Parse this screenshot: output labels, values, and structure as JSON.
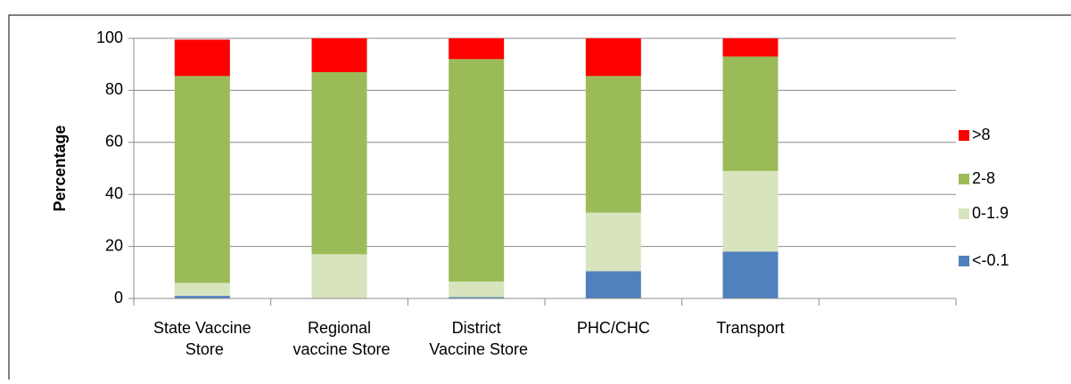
{
  "chart_data": {
    "type": "stacked_bar",
    "y_label": "Percentage",
    "categories": [
      "State Vaccine Store",
      "Regional vaccine Store",
      "District Vaccine Store",
      "PHC/CHC",
      "Transport",
      null
    ],
    "series": [
      {
        "name": "<-0.1",
        "color": "#4f81bd",
        "values": [
          1,
          0,
          0.5,
          10.5,
          18,
          null
        ]
      },
      {
        "name": "0-1.9",
        "color": "#d7e4bd",
        "values": [
          5,
          17,
          6,
          22.5,
          31,
          null
        ]
      },
      {
        "name": "2-8",
        "color": "#9bbb59",
        "values": [
          79.5,
          70,
          85.5,
          52.5,
          44,
          null
        ]
      },
      {
        "name": ">8",
        "color": "#ff0000",
        "values": [
          14,
          13,
          8,
          14.5,
          7,
          null
        ]
      }
    ],
    "ylim": [
      0,
      100
    ],
    "yticks": [
      0,
      20,
      40,
      60,
      80,
      100
    ],
    "grid": true,
    "legend": "right"
  }
}
